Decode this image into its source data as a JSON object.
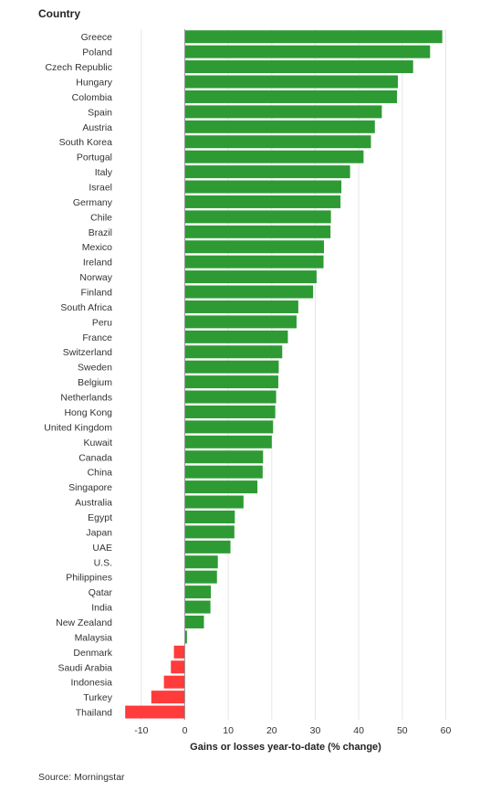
{
  "chart_data": {
    "type": "bar",
    "orientation": "horizontal",
    "title": "",
    "ylabel": "Country",
    "xlabel": "Gains or losses year-to-date (% change)",
    "source": "Source: Morningstar",
    "xlim": [
      -15,
      62
    ],
    "xticks": [
      -10,
      0,
      10,
      20,
      30,
      40,
      50,
      60
    ],
    "grid": true,
    "colors": {
      "positive": "#2e9a34",
      "negative": "#ff3b3b",
      "grid": "#e6e6e6",
      "baseline": "#999999"
    },
    "categories": [
      "Greece",
      "Poland",
      "Czech Republic",
      "Hungary",
      "Colombia",
      "Spain",
      "Austria",
      "South Korea",
      "Portugal",
      "Italy",
      "Israel",
      "Germany",
      "Chile",
      "Brazil",
      "Mexico",
      "Ireland",
      "Norway",
      "Finland",
      "South Africa",
      "Peru",
      "France",
      "Switzerland",
      "Sweden",
      "Belgium",
      "Netherlands",
      "Hong Kong",
      "United Kingdom",
      "Kuwait",
      "Canada",
      "China",
      "Singapore",
      "Australia",
      "Egypt",
      "Japan",
      "UAE",
      "U.S.",
      "Philippines",
      "Qatar",
      "India",
      "New Zealand",
      "Malaysia",
      "Denmark",
      "Saudi Arabia",
      "Indonesia",
      "Turkey",
      "Thailand"
    ],
    "values": [
      59.2,
      56.4,
      52.5,
      49.0,
      48.8,
      45.3,
      43.7,
      42.8,
      41.1,
      38.0,
      36.0,
      35.8,
      33.6,
      33.5,
      32.0,
      31.9,
      30.3,
      29.5,
      26.1,
      25.7,
      23.7,
      22.4,
      21.6,
      21.5,
      21.0,
      20.8,
      20.3,
      20.0,
      18.0,
      17.9,
      16.7,
      13.5,
      11.5,
      11.4,
      10.5,
      7.6,
      7.4,
      6.0,
      5.9,
      4.4,
      0.5,
      -2.5,
      -3.2,
      -4.8,
      -7.7,
      -13.7
    ]
  }
}
